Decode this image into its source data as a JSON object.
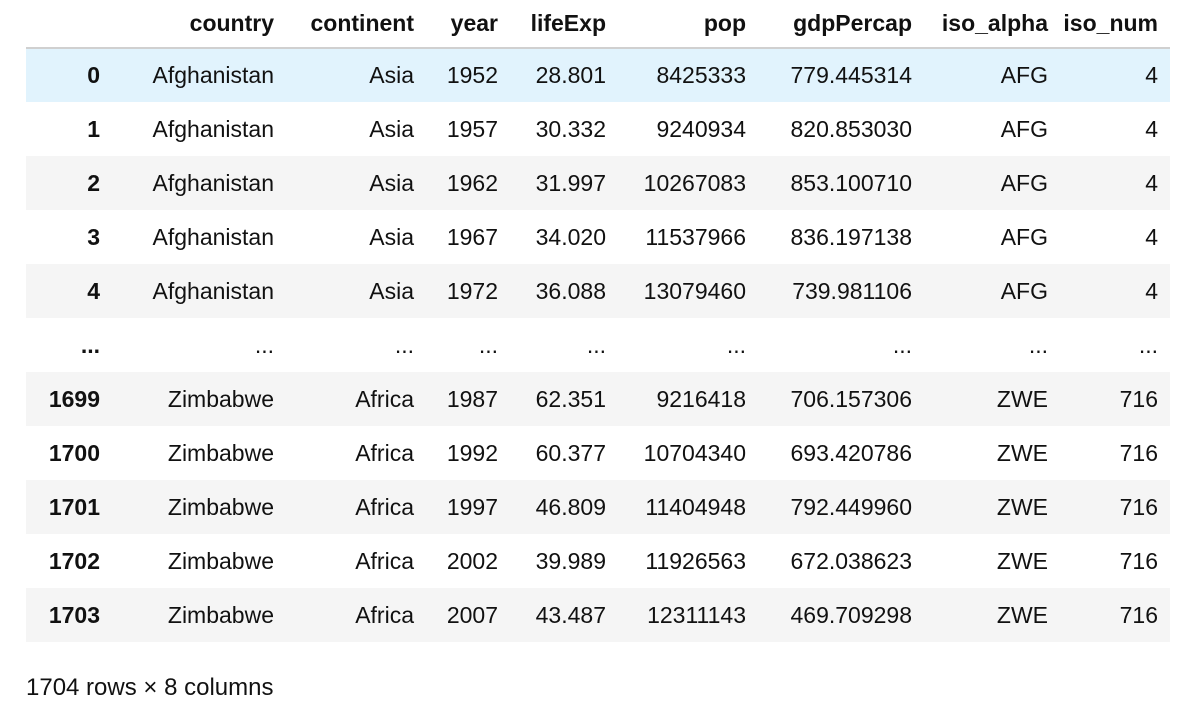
{
  "columns": [
    "",
    "country",
    "continent",
    "year",
    "lifeExp",
    "pop",
    "gdpPercap",
    "iso_alpha",
    "iso_num"
  ],
  "rows": [
    {
      "index": "0",
      "country": "Afghanistan",
      "continent": "Asia",
      "year": "1952",
      "lifeExp": "28.801",
      "pop": "8425333",
      "gdpPercap": "779.445314",
      "iso_alpha": "AFG",
      "iso_num": "4"
    },
    {
      "index": "1",
      "country": "Afghanistan",
      "continent": "Asia",
      "year": "1957",
      "lifeExp": "30.332",
      "pop": "9240934",
      "gdpPercap": "820.853030",
      "iso_alpha": "AFG",
      "iso_num": "4"
    },
    {
      "index": "2",
      "country": "Afghanistan",
      "continent": "Asia",
      "year": "1962",
      "lifeExp": "31.997",
      "pop": "10267083",
      "gdpPercap": "853.100710",
      "iso_alpha": "AFG",
      "iso_num": "4"
    },
    {
      "index": "3",
      "country": "Afghanistan",
      "continent": "Asia",
      "year": "1967",
      "lifeExp": "34.020",
      "pop": "11537966",
      "gdpPercap": "836.197138",
      "iso_alpha": "AFG",
      "iso_num": "4"
    },
    {
      "index": "4",
      "country": "Afghanistan",
      "continent": "Asia",
      "year": "1972",
      "lifeExp": "36.088",
      "pop": "13079460",
      "gdpPercap": "739.981106",
      "iso_alpha": "AFG",
      "iso_num": "4"
    },
    {
      "index": "...",
      "country": "...",
      "continent": "...",
      "year": "...",
      "lifeExp": "...",
      "pop": "...",
      "gdpPercap": "...",
      "iso_alpha": "...",
      "iso_num": "..."
    },
    {
      "index": "1699",
      "country": "Zimbabwe",
      "continent": "Africa",
      "year": "1987",
      "lifeExp": "62.351",
      "pop": "9216418",
      "gdpPercap": "706.157306",
      "iso_alpha": "ZWE",
      "iso_num": "716"
    },
    {
      "index": "1700",
      "country": "Zimbabwe",
      "continent": "Africa",
      "year": "1992",
      "lifeExp": "60.377",
      "pop": "10704340",
      "gdpPercap": "693.420786",
      "iso_alpha": "ZWE",
      "iso_num": "716"
    },
    {
      "index": "1701",
      "country": "Zimbabwe",
      "continent": "Africa",
      "year": "1997",
      "lifeExp": "46.809",
      "pop": "11404948",
      "gdpPercap": "792.449960",
      "iso_alpha": "ZWE",
      "iso_num": "716"
    },
    {
      "index": "1702",
      "country": "Zimbabwe",
      "continent": "Africa",
      "year": "2002",
      "lifeExp": "39.989",
      "pop": "11926563",
      "gdpPercap": "672.038623",
      "iso_alpha": "ZWE",
      "iso_num": "716"
    },
    {
      "index": "1703",
      "country": "Zimbabwe",
      "continent": "Africa",
      "year": "2007",
      "lifeExp": "43.487",
      "pop": "12311143",
      "gdpPercap": "469.709298",
      "iso_alpha": "ZWE",
      "iso_num": "716"
    }
  ],
  "highlighted_row": 0,
  "footer": "1704 rows × 8 columns",
  "colors": {
    "row_stripe": "#f5f5f5",
    "row_highlight": "#e1f3fd",
    "header_border": "#d0d0d0",
    "text": "#111111"
  }
}
